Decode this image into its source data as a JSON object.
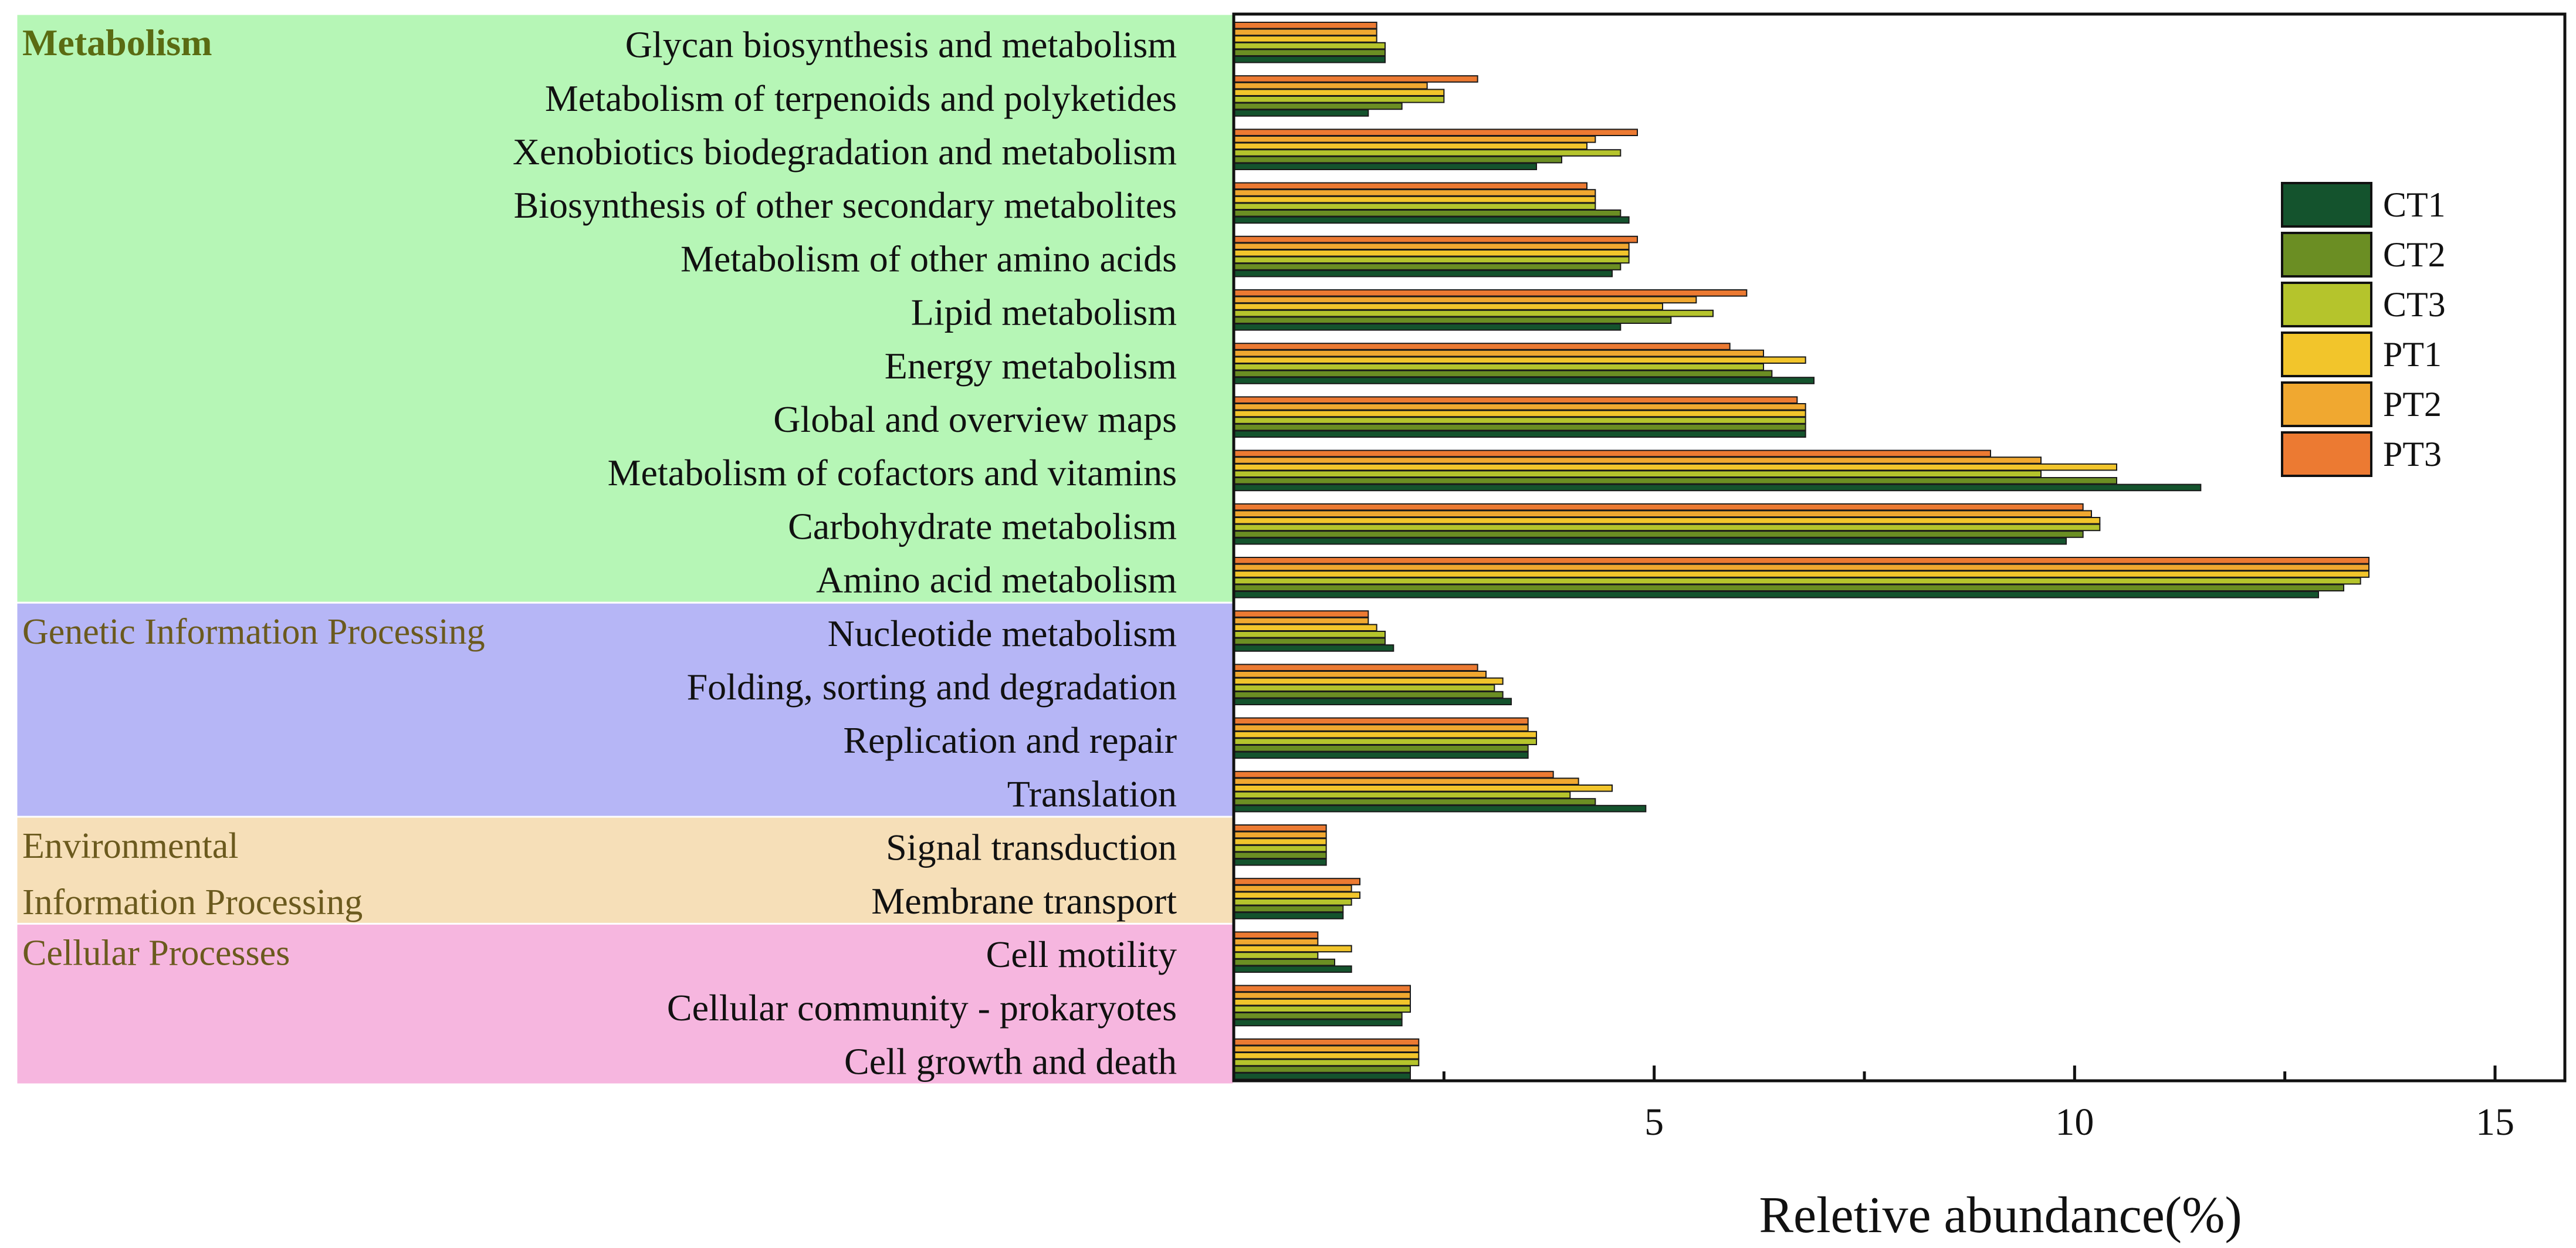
{
  "chart_data": {
    "type": "bar",
    "orientation": "horizontal",
    "xlabel": "Reletive abundance(%)",
    "ylabel": "",
    "xlim": [
      0,
      16
    ],
    "xticks": [
      5,
      10,
      15
    ],
    "xtick_labels": [
      "5",
      "10",
      "15"
    ],
    "legend_position": "right",
    "categories": [
      "Glycan biosynthesis and metabolism",
      "Metabolism of terpenoids and polyketides",
      "Xenobiotics biodegradation and metabolism",
      "Biosynthesis of other secondary metabolites",
      "Metabolism of other amino acids",
      "Lipid metabolism",
      "Energy metabolism",
      "Global and overview maps",
      "Metabolism of cofactors and vitamins",
      "Carbohydrate metabolism",
      "Amino acid metabolism",
      "Nucleotide metabolism",
      "Folding, sorting and degradation",
      "Replication and repair",
      "Translation",
      "Signal transduction",
      "Membrane transport",
      "Cell motility",
      "Cellular community - prokaryotes",
      "Cell growth and death"
    ],
    "category_groups": [
      {
        "name": "Metabolism",
        "bold": true,
        "color": "#b6f6b6",
        "rows": 11,
        "label_lines": [
          "Metabolism"
        ]
      },
      {
        "name": "Genetic Information Processing",
        "bold": false,
        "color": "#b6b6f6",
        "rows": 4,
        "label_lines": [
          "Genetic Information Processing"
        ]
      },
      {
        "name": "Environmental Information Processing",
        "bold": false,
        "color": "#f6dfb8",
        "rows": 2,
        "label_lines": [
          "Environmental",
          "Information Processing"
        ]
      },
      {
        "name": "Cellular Processes",
        "bold": false,
        "color": "#f6b6df",
        "rows": 3,
        "label_lines": [
          "Cellular Processes"
        ]
      }
    ],
    "series": [
      {
        "name": "CT1",
        "color": "#14532d",
        "values": [
          1.8,
          1.6,
          3.6,
          4.7,
          4.5,
          4.6,
          6.9,
          6.8,
          11.5,
          9.9,
          12.9,
          1.9,
          3.3,
          3.5,
          4.9,
          1.1,
          1.3,
          1.4,
          2.0,
          2.1
        ]
      },
      {
        "name": "CT2",
        "color": "#6b8e23",
        "values": [
          1.8,
          2.0,
          3.9,
          4.6,
          4.6,
          5.2,
          6.4,
          6.8,
          10.5,
          10.1,
          13.2,
          1.8,
          3.2,
          3.5,
          4.3,
          1.1,
          1.3,
          1.2,
          2.0,
          2.1
        ]
      },
      {
        "name": "CT3",
        "color": "#b5c42c",
        "values": [
          1.8,
          2.5,
          4.6,
          4.3,
          4.7,
          5.7,
          6.3,
          6.8,
          9.6,
          10.3,
          13.4,
          1.8,
          3.1,
          3.6,
          4.0,
          1.1,
          1.4,
          1.0,
          2.1,
          2.2
        ]
      },
      {
        "name": "PT1",
        "color": "#f2c52b",
        "values": [
          1.7,
          2.5,
          4.2,
          4.3,
          4.7,
          5.1,
          6.8,
          6.8,
          10.5,
          10.3,
          13.5,
          1.7,
          3.2,
          3.6,
          4.5,
          1.1,
          1.5,
          1.4,
          2.1,
          2.2
        ]
      },
      {
        "name": "PT2",
        "color": "#f0a830",
        "values": [
          1.7,
          2.3,
          4.3,
          4.3,
          4.7,
          5.5,
          6.3,
          6.8,
          9.6,
          10.2,
          13.5,
          1.6,
          3.0,
          3.5,
          4.1,
          1.1,
          1.4,
          1.0,
          2.1,
          2.2
        ]
      },
      {
        "name": "PT3",
        "color": "#ec7a32",
        "values": [
          1.7,
          2.9,
          4.8,
          4.2,
          4.8,
          6.1,
          5.9,
          6.7,
          9.0,
          10.1,
          13.5,
          1.6,
          2.9,
          3.5,
          3.8,
          1.1,
          1.5,
          1.0,
          2.1,
          2.2
        ]
      }
    ]
  }
}
